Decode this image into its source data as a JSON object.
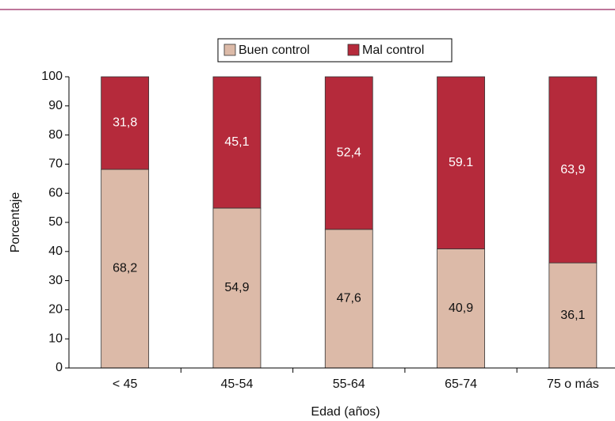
{
  "chart_data": {
    "type": "stacked_bar",
    "categories": [
      "< 45",
      "45-54",
      "55-64",
      "65-74",
      "75 o más"
    ],
    "series": [
      {
        "name": "Buen control",
        "color": "#dcbaa8",
        "values": [
          68.2,
          54.9,
          47.6,
          40.9,
          36.1
        ],
        "value_labels": [
          "68,2",
          "54,9",
          "47,6",
          "40,9",
          "36,1"
        ]
      },
      {
        "name": "Mal control",
        "color": "#b52a3b",
        "values": [
          31.8,
          45.1,
          52.4,
          59.1,
          63.9
        ],
        "value_labels": [
          "31,8",
          "45,1",
          "52,4",
          "59.1",
          "63,9"
        ]
      }
    ],
    "ylim": [
      0,
      100
    ],
    "yticks": [
      0,
      10,
      20,
      30,
      40,
      50,
      60,
      70,
      80,
      90,
      100
    ],
    "ylabel": "Porcentaje",
    "xlabel": "Edad (años)",
    "legend": "top"
  }
}
